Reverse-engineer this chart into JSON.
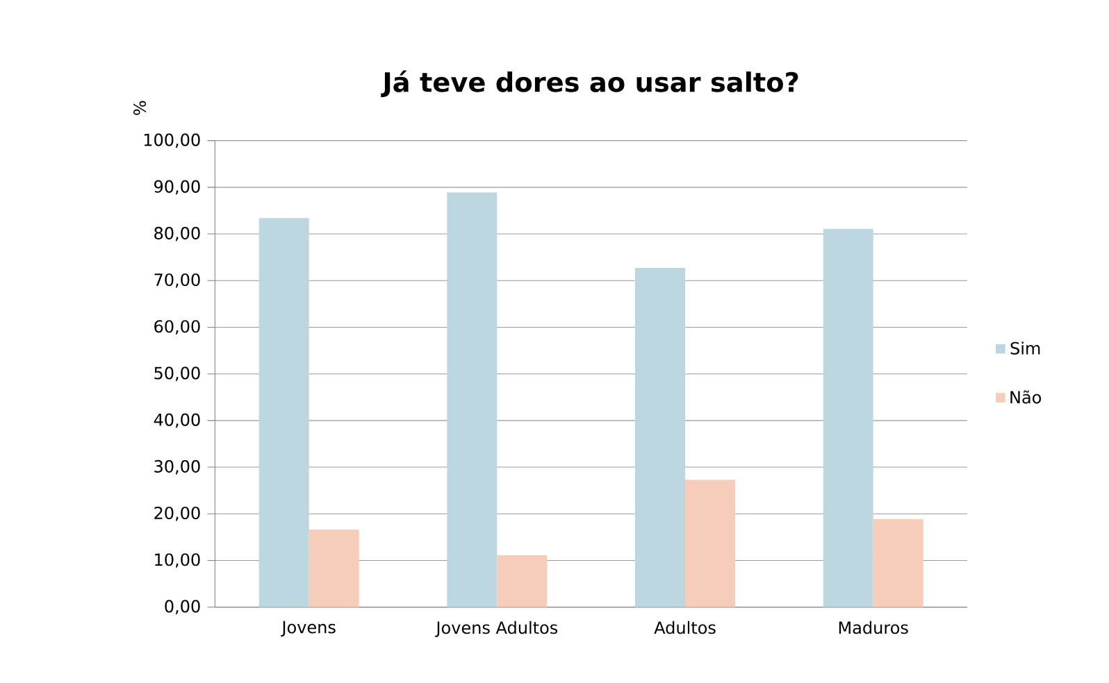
{
  "chart_data": {
    "type": "bar",
    "title": "Já teve dores ao usar salto?",
    "ylabel": "%",
    "categories": [
      "Jovens",
      "Jovens Adultos",
      "Adultos",
      "Maduros"
    ],
    "series": [
      {
        "name": "Sim",
        "color": "#bcd7e0",
        "values": [
          83.4,
          88.9,
          72.7,
          81.1
        ]
      },
      {
        "name": "Não",
        "color": "#f6cdb8",
        "values": [
          16.6,
          11.1,
          27.3,
          18.9
        ]
      }
    ],
    "ylim": [
      0,
      100
    ],
    "yticks": [
      {
        "value": 0,
        "label": "0,00"
      },
      {
        "value": 10,
        "label": "10,00"
      },
      {
        "value": 20,
        "label": "20,00"
      },
      {
        "value": 30,
        "label": "30,00"
      },
      {
        "value": 40,
        "label": "40,00"
      },
      {
        "value": 50,
        "label": "50,00"
      },
      {
        "value": 60,
        "label": "60,00"
      },
      {
        "value": 70,
        "label": "70,00"
      },
      {
        "value": 80,
        "label": "80,00"
      },
      {
        "value": 90,
        "label": "90,00"
      },
      {
        "value": 100,
        "label": "100,00"
      }
    ],
    "grid": "y",
    "legend": "right"
  }
}
